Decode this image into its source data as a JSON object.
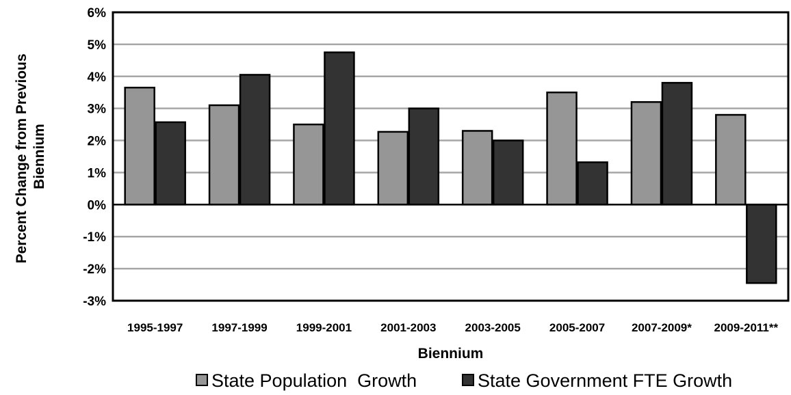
{
  "chart_data": {
    "type": "bar",
    "categories": [
      "1995-1997",
      "1997-1999",
      "1999-2001",
      "2001-2003",
      "2003-2005",
      "2005-2007",
      "2007-2009*",
      "2009-2011**"
    ],
    "series": [
      {
        "name": "State Population  Growth",
        "color": "#969696",
        "values": [
          3.65,
          3.1,
          2.5,
          2.27,
          2.3,
          3.5,
          3.2,
          2.8
        ]
      },
      {
        "name": "State Government FTE Growth",
        "color": "#333333",
        "values": [
          2.57,
          4.05,
          4.75,
          3.0,
          2.0,
          1.32,
          3.8,
          -2.45
        ]
      }
    ],
    "xlabel": "Biennium",
    "ylabel_lines": [
      "Percent Change from Previous",
      "Biennium"
    ],
    "ylim": [
      -3,
      6
    ],
    "ytick_values": [
      -3,
      -2,
      -1,
      0,
      1,
      2,
      3,
      4,
      5,
      6
    ],
    "ytick_labels": [
      "-3%",
      "-2%",
      "-1%",
      "0%",
      "1%",
      "2%",
      "3%",
      "4%",
      "5%",
      "6%"
    ],
    "grid": true,
    "legend_position": "bottom"
  }
}
